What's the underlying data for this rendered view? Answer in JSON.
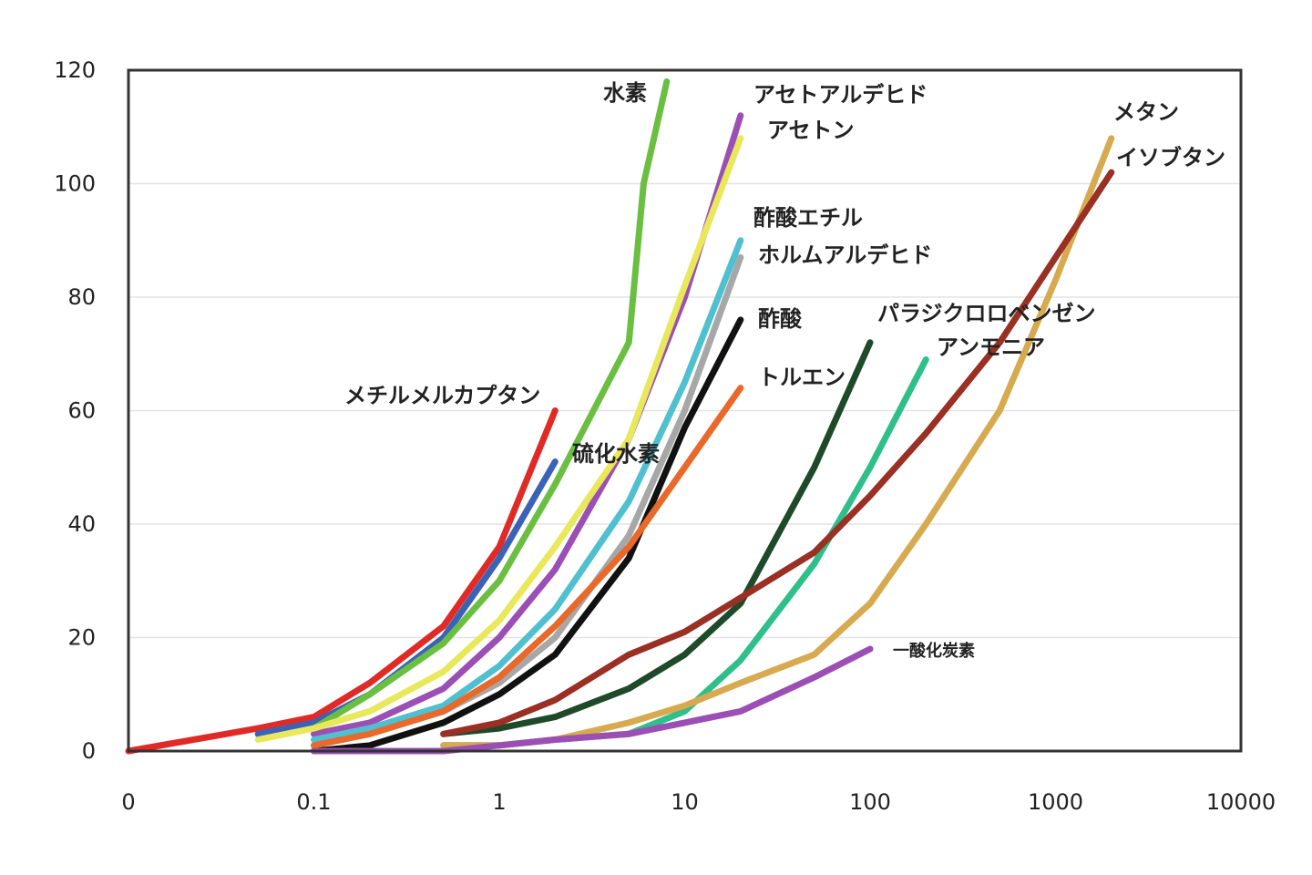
{
  "chart_data": {
    "type": "line",
    "title": "",
    "xlabel": "",
    "ylabel": "",
    "x_scale": "log",
    "x_tick_labels": [
      "0",
      "0.1",
      "1",
      "10",
      "100",
      "1000",
      "10000"
    ],
    "x_tick_values": [
      0.01,
      0.1,
      1,
      10,
      100,
      1000,
      10000
    ],
    "y_ticks": [
      0,
      20,
      40,
      60,
      80,
      100,
      120
    ],
    "xlim": [
      0.01,
      10000
    ],
    "ylim": [
      0,
      120
    ],
    "grid": "horizontal",
    "legend": "labels at line ends",
    "series": [
      {
        "name": "メチルメルカプタン",
        "color": "#e02a26",
        "points": [
          [
            0.01,
            0
          ],
          [
            0.05,
            4
          ],
          [
            0.1,
            6
          ],
          [
            0.2,
            12
          ],
          [
            0.5,
            22
          ],
          [
            1,
            36
          ],
          [
            2,
            60
          ]
        ]
      },
      {
        "name": "硫化水素",
        "color": "#3a63b8",
        "points": [
          [
            0.05,
            3
          ],
          [
            0.1,
            5
          ],
          [
            0.2,
            10
          ],
          [
            0.5,
            20
          ],
          [
            1,
            34
          ],
          [
            2,
            51
          ]
        ]
      },
      {
        "name": "水素",
        "color": "#6abf40",
        "points": [
          [
            0.1,
            4
          ],
          [
            0.2,
            10
          ],
          [
            0.5,
            19
          ],
          [
            1,
            30
          ],
          [
            2,
            47
          ],
          [
            5,
            72
          ],
          [
            6,
            100
          ],
          [
            8,
            118
          ]
        ]
      },
      {
        "name": "アセトアルデヒド",
        "color": "#9b4fb5",
        "points": [
          [
            0.1,
            3
          ],
          [
            0.2,
            5
          ],
          [
            0.5,
            11
          ],
          [
            1,
            20
          ],
          [
            2,
            32
          ],
          [
            5,
            55
          ],
          [
            10,
            80
          ],
          [
            20,
            112
          ]
        ]
      },
      {
        "name": "アセトン",
        "color": "#e8e85a",
        "points": [
          [
            0.05,
            2
          ],
          [
            0.1,
            4
          ],
          [
            0.2,
            7
          ],
          [
            0.5,
            14
          ],
          [
            1,
            23
          ],
          [
            2,
            36
          ],
          [
            5,
            55
          ],
          [
            10,
            82
          ],
          [
            20,
            108
          ]
        ]
      },
      {
        "name": "酢酸エチル",
        "color": "#4fc0cf",
        "points": [
          [
            0.1,
            2
          ],
          [
            0.2,
            4
          ],
          [
            0.5,
            8
          ],
          [
            1,
            15
          ],
          [
            2,
            25
          ],
          [
            5,
            44
          ],
          [
            10,
            65
          ],
          [
            20,
            90
          ]
        ]
      },
      {
        "name": "ホルムアルデヒド",
        "color": "#a7a7a7",
        "points": [
          [
            0.1,
            1
          ],
          [
            0.2,
            3
          ],
          [
            0.5,
            7
          ],
          [
            1,
            12
          ],
          [
            2,
            20
          ],
          [
            5,
            38
          ],
          [
            10,
            60
          ],
          [
            20,
            87
          ]
        ]
      },
      {
        "name": "酢酸",
        "color": "#111111",
        "points": [
          [
            0.1,
            0
          ],
          [
            0.2,
            1
          ],
          [
            0.5,
            5
          ],
          [
            1,
            10
          ],
          [
            2,
            17
          ],
          [
            5,
            34
          ],
          [
            10,
            57
          ],
          [
            20,
            76
          ]
        ]
      },
      {
        "name": "トルエン",
        "color": "#e8692a",
        "points": [
          [
            0.1,
            1
          ],
          [
            0.2,
            3
          ],
          [
            0.5,
            7
          ],
          [
            1,
            13
          ],
          [
            2,
            22
          ],
          [
            5,
            36
          ],
          [
            10,
            50
          ],
          [
            20,
            64
          ]
        ]
      },
      {
        "name": "パラジクロロベンゼン",
        "color": "#1f4a2a",
        "points": [
          [
            0.5,
            3
          ],
          [
            1,
            4
          ],
          [
            2,
            6
          ],
          [
            5,
            11
          ],
          [
            10,
            17
          ],
          [
            20,
            26
          ],
          [
            50,
            50
          ],
          [
            100,
            72
          ]
        ]
      },
      {
        "name": "アンモニア",
        "color": "#2fbf8a",
        "points": [
          [
            0.5,
            1
          ],
          [
            1,
            1
          ],
          [
            2,
            2
          ],
          [
            5,
            3
          ],
          [
            10,
            7
          ],
          [
            20,
            16
          ],
          [
            50,
            33
          ],
          [
            100,
            50
          ],
          [
            200,
            69
          ]
        ]
      },
      {
        "name": "メタン",
        "color": "#d7aa50",
        "points": [
          [
            0.5,
            1
          ],
          [
            1,
            1
          ],
          [
            2,
            2
          ],
          [
            5,
            5
          ],
          [
            10,
            8
          ],
          [
            20,
            12
          ],
          [
            50,
            17
          ],
          [
            100,
            26
          ],
          [
            200,
            40
          ],
          [
            500,
            60
          ],
          [
            1000,
            83
          ],
          [
            2000,
            108
          ]
        ]
      },
      {
        "name": "イソブタン",
        "color": "#9a2f24",
        "points": [
          [
            0.5,
            3
          ],
          [
            1,
            5
          ],
          [
            2,
            9
          ],
          [
            5,
            17
          ],
          [
            10,
            21
          ],
          [
            20,
            27
          ],
          [
            50,
            35
          ],
          [
            100,
            45
          ],
          [
            200,
            56
          ],
          [
            500,
            72
          ],
          [
            1000,
            87
          ],
          [
            2000,
            102
          ]
        ]
      },
      {
        "name": "一酸化炭素",
        "color": "#9b4fb5",
        "points": [
          [
            0.1,
            0
          ],
          [
            0.2,
            0
          ],
          [
            0.5,
            0
          ],
          [
            1,
            1
          ],
          [
            2,
            2
          ],
          [
            5,
            3
          ],
          [
            10,
            5
          ],
          [
            20,
            7
          ],
          [
            50,
            13
          ],
          [
            100,
            18
          ]
        ]
      }
    ]
  }
}
